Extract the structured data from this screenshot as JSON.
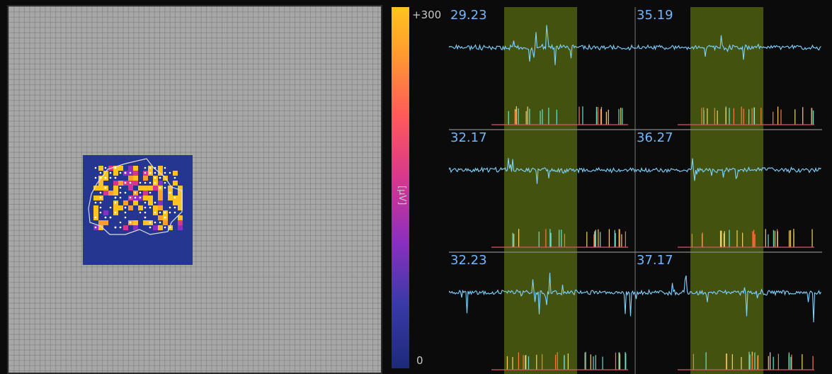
{
  "colorbar": {
    "max_label": "+300",
    "min_label": "0",
    "unit": "[µV]",
    "colors": [
      "#ffc321",
      "#ff9e2e",
      "#ff5a5a",
      "#d6368f",
      "#8a2fc0",
      "#3a3aa8",
      "#1c2a7a"
    ]
  },
  "heatmap": {
    "bg_color": "#24368f",
    "outline_color": "#dddddd",
    "hot_color": "#ffc321",
    "dot_color": "#ffffff"
  },
  "traces": {
    "trace_color": "#7fd3ff",
    "highlight_color": "#4a5a10",
    "cells": [
      {
        "label": "29.23"
      },
      {
        "label": "35.19"
      },
      {
        "label": "32.17"
      },
      {
        "label": "36.27"
      },
      {
        "label": "32.23"
      },
      {
        "label": "37.17"
      }
    ]
  }
}
